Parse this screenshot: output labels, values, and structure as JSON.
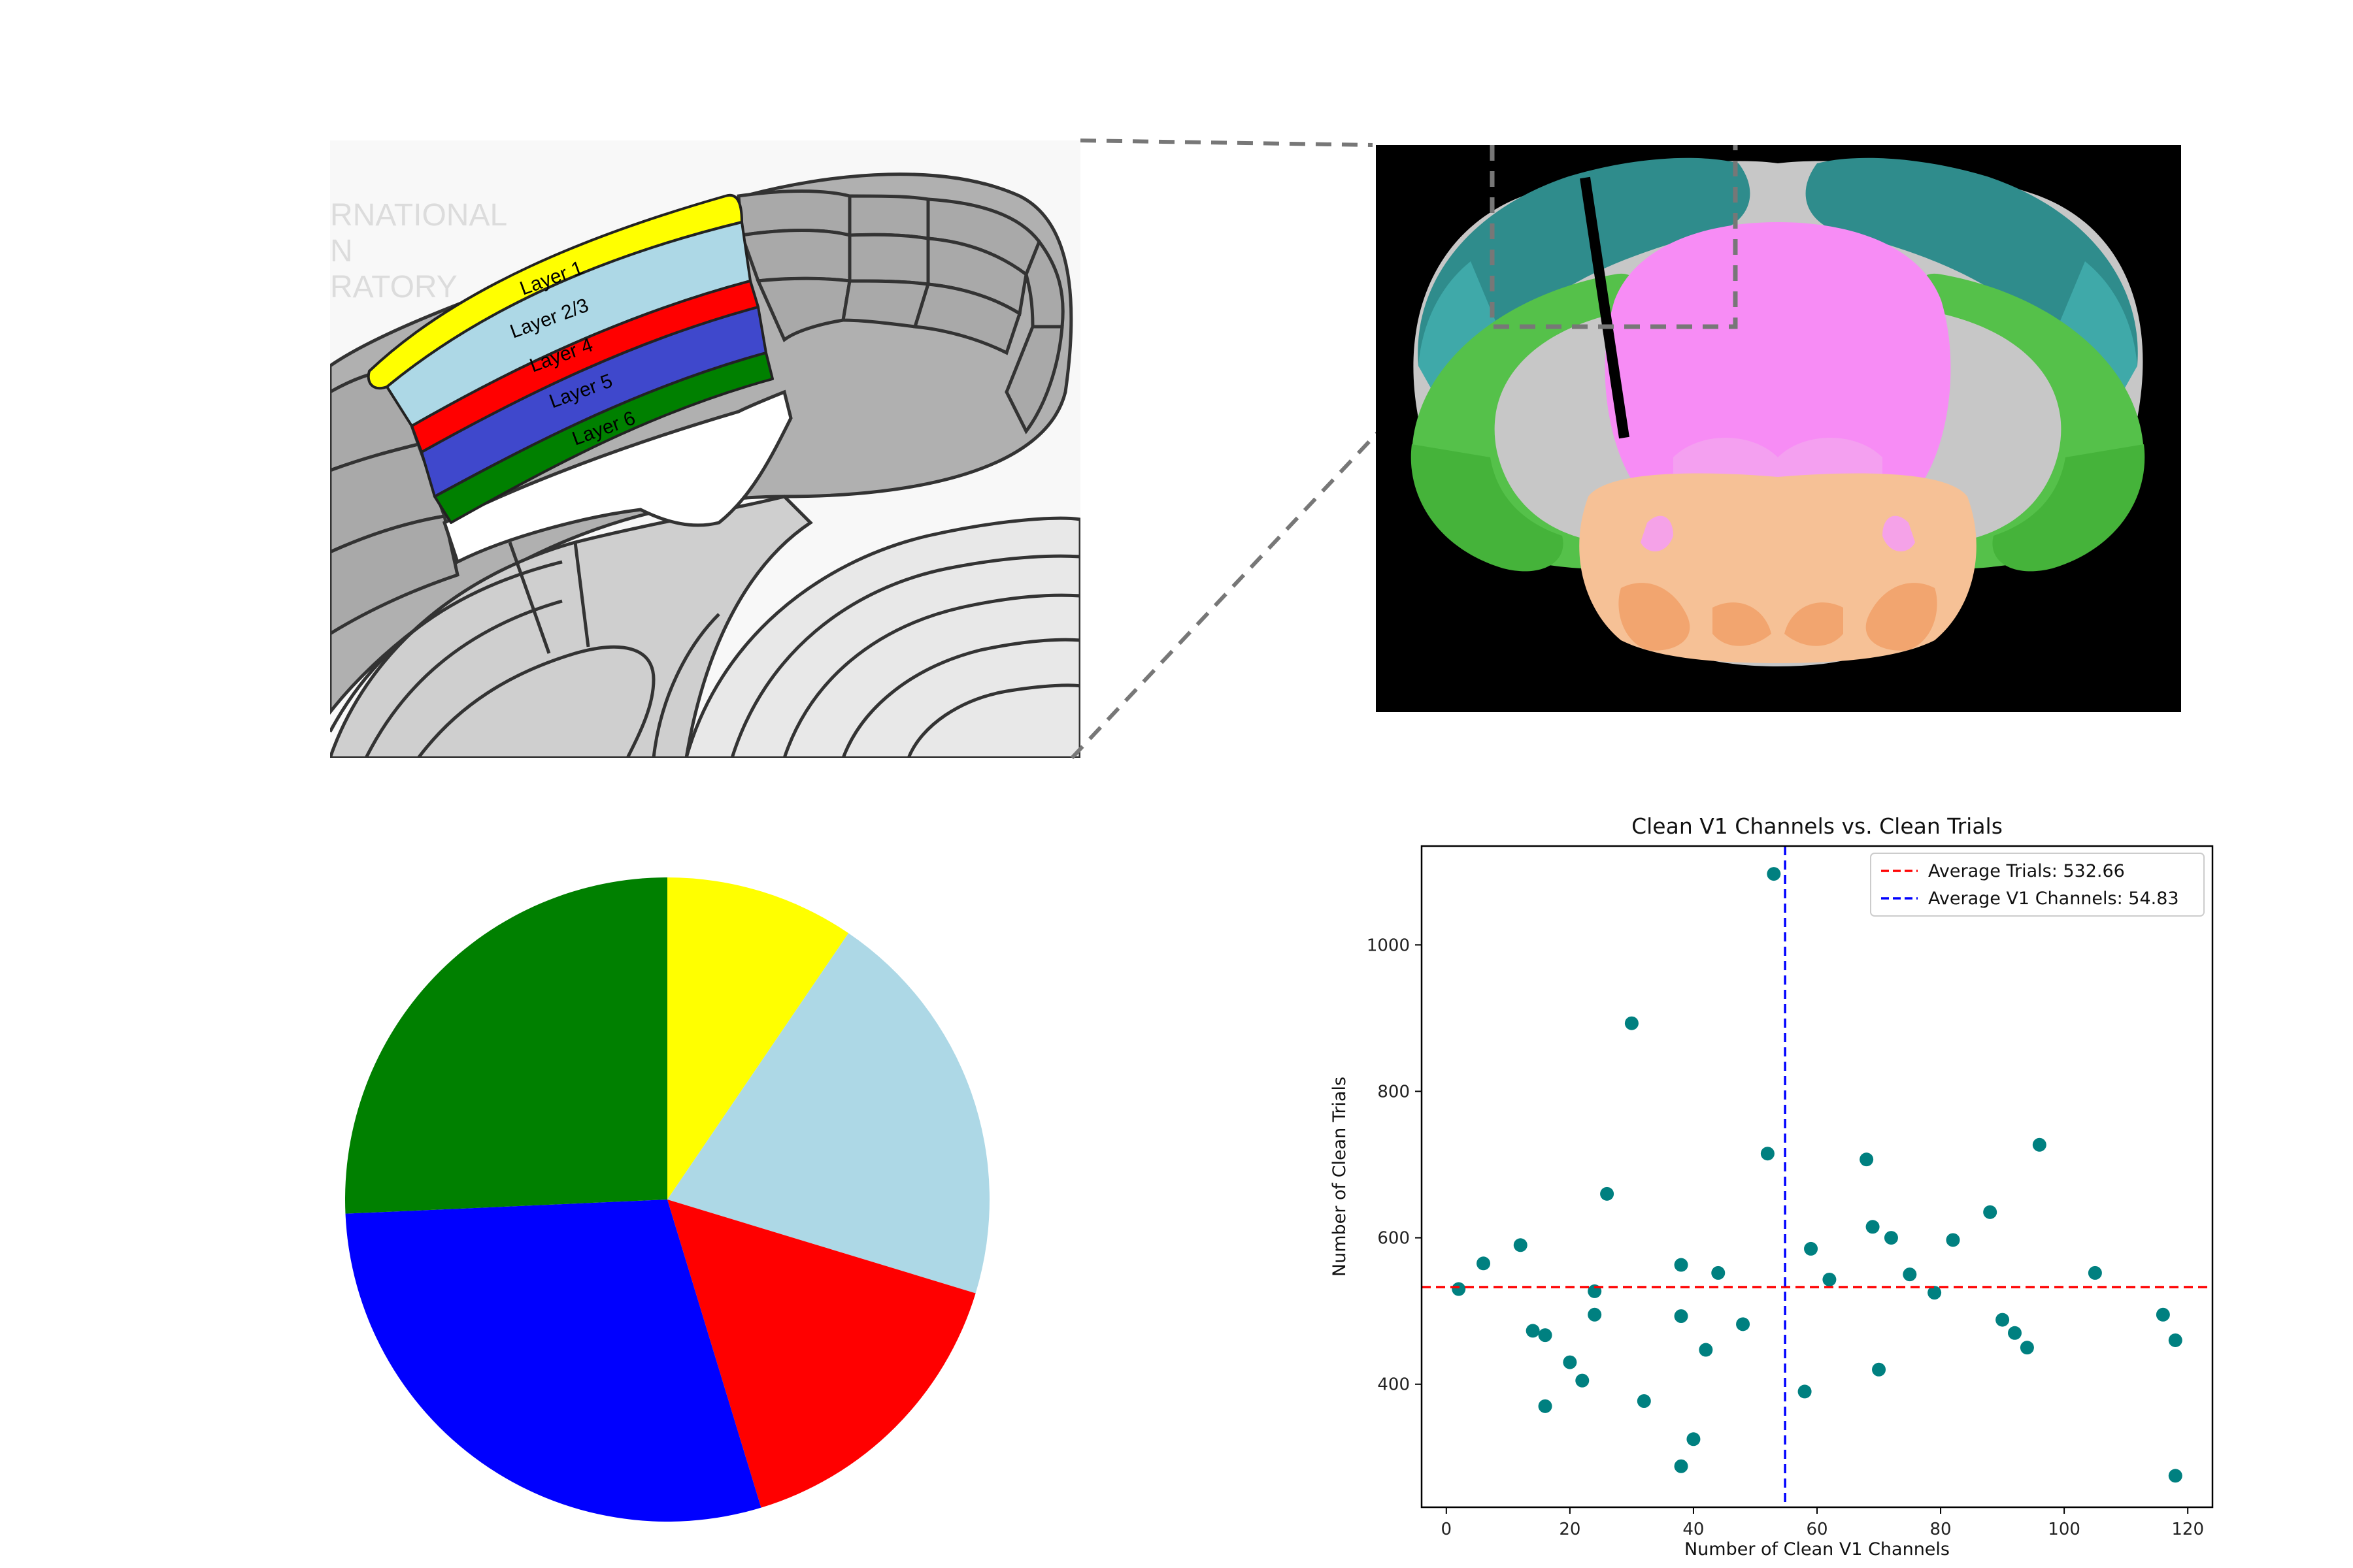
{
  "panel_a": {
    "layer_labels": [
      "Layer 1",
      "Layer 2/3",
      "Layer 4",
      "Layer 5",
      "Layer 6"
    ],
    "watermark_lines": [
      "RNATIONAL",
      "N",
      "RATORY"
    ],
    "colors": {
      "layer1": "#ffff00",
      "layer23": "#add8e6",
      "layer4": "#ff0000",
      "layer5": "#3f48cc",
      "layer6": "#008000"
    }
  },
  "panel_b": {
    "colors": {
      "background": "#000000",
      "isocortex": "#2f8c8c",
      "hippocampus": "#55c14a",
      "thalamus": "#f78cf5",
      "midbrain": "#f6c196"
    }
  },
  "chart_data": [
    {
      "type": "pie",
      "slices": [
        {
          "color": "#ffff00",
          "fraction": 0.095
        },
        {
          "color": "#add8e6",
          "fraction": 0.202
        },
        {
          "color": "#ff0000",
          "fraction": 0.156
        },
        {
          "color": "#0000ff",
          "fraction": 0.29
        },
        {
          "color": "#008000",
          "fraction": 0.257
        }
      ],
      "start_angle_deg": 90,
      "direction": "clockwise"
    },
    {
      "type": "scatter",
      "title": "Clean V1 Channels vs. Clean Trials",
      "xlabel": "Number of Clean V1 Channels",
      "ylabel": "Number of Clean Trials",
      "xlim": [
        -4,
        124
      ],
      "ylim": [
        232,
        1135
      ],
      "xticks": [
        0,
        20,
        40,
        60,
        80,
        100,
        120
      ],
      "yticks": [
        400,
        600,
        800,
        1000
      ],
      "point_color": "#008080",
      "points": [
        [
          2,
          530
        ],
        [
          6,
          565
        ],
        [
          12,
          590
        ],
        [
          14,
          473
        ],
        [
          16,
          467
        ],
        [
          16,
          370
        ],
        [
          20,
          430
        ],
        [
          22,
          405
        ],
        [
          24,
          527
        ],
        [
          24,
          495
        ],
        [
          26,
          660
        ],
        [
          30,
          893
        ],
        [
          32,
          377
        ],
        [
          38,
          563
        ],
        [
          38,
          493
        ],
        [
          38,
          288
        ],
        [
          40,
          325
        ],
        [
          42,
          447
        ],
        [
          44,
          552
        ],
        [
          48,
          482
        ],
        [
          52,
          715
        ],
        [
          53,
          1097
        ],
        [
          58,
          390
        ],
        [
          59,
          585
        ],
        [
          62,
          543
        ],
        [
          68,
          707
        ],
        [
          69,
          615
        ],
        [
          70,
          420
        ],
        [
          72,
          600
        ],
        [
          75,
          550
        ],
        [
          79,
          525
        ],
        [
          82,
          597
        ],
        [
          88,
          635
        ],
        [
          90,
          488
        ],
        [
          92,
          470
        ],
        [
          94,
          450
        ],
        [
          96,
          727
        ],
        [
          105,
          552
        ],
        [
          116,
          495
        ],
        [
          118,
          460
        ],
        [
          118,
          275
        ]
      ],
      "hlines": [
        {
          "y": 532.66,
          "color": "#ff0000",
          "style": "dashed",
          "label": "Average Trials: 532.66"
        }
      ],
      "vlines": [
        {
          "x": 54.83,
          "color": "#0000ff",
          "style": "dashed",
          "label": "Average V1 Channels: 54.83"
        }
      ],
      "legend": {
        "placement": "upper right",
        "entries": [
          {
            "label": "Average Trials: 532.66",
            "color": "#ff0000"
          },
          {
            "label": "Average V1 Channels: 54.83",
            "color": "#0000ff"
          }
        ]
      },
      "grid": false
    }
  ]
}
